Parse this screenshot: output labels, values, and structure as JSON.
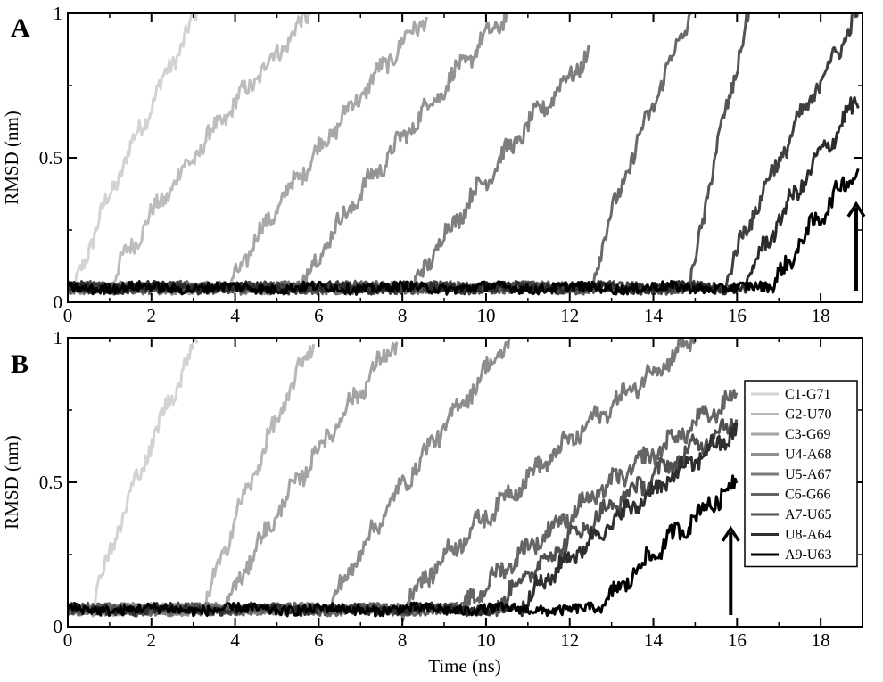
{
  "chart_data": [
    {
      "type": "line",
      "panel_label": "A",
      "ylabel": "RMSD (nm)",
      "xlabel": "",
      "xlim": [
        0,
        19
      ],
      "ylim": [
        0,
        1
      ],
      "x_ticks": [
        0,
        2,
        4,
        6,
        8,
        10,
        12,
        14,
        16,
        18
      ],
      "y_ticks": [
        0,
        0.5,
        1
      ],
      "legend": false,
      "baseline": 0.05,
      "arrow": {
        "x": 18.85,
        "y_from": 0.04,
        "y_to": 0.34
      },
      "series": [
        {
          "color": "#d3d3d3",
          "rise_start": 0.2,
          "rise_end": 3.1,
          "end_x": 3.1,
          "end_y": 1.0
        },
        {
          "color": "#bdbdbd",
          "rise_start": 1.0,
          "rise_end": 5.8,
          "end_x": 5.8,
          "end_y": 1.0
        },
        {
          "color": "#a8a8a8",
          "rise_start": 3.9,
          "rise_end": 8.6,
          "end_x": 8.6,
          "end_y": 1.0
        },
        {
          "color": "#939393",
          "rise_start": 5.6,
          "rise_end": 10.5,
          "end_x": 10.5,
          "end_y": 1.0
        },
        {
          "color": "#7e7e7e",
          "rise_start": 8.3,
          "rise_end": 12.4,
          "end_x": 12.5,
          "end_y": 0.85
        },
        {
          "color": "#6a6a6a",
          "rise_start": 12.5,
          "rise_end": 14.9,
          "end_x": 14.9,
          "end_y": 1.0
        },
        {
          "color": "#555555",
          "rise_start": 14.9,
          "rise_end": 16.3,
          "end_x": 16.3,
          "end_y": 1.0
        },
        {
          "color": "#404040",
          "rise_start": 15.7,
          "rise_end": 18.9,
          "end_x": 18.9,
          "end_y": 1.0
        },
        {
          "color": "#2b2b2b",
          "rise_start": 16.2,
          "rise_end": 18.9,
          "end_x": 18.9,
          "end_y": 0.7
        },
        {
          "color": "#000000",
          "rise_start": 16.9,
          "rise_end": 18.9,
          "end_x": 18.9,
          "end_y": 0.47
        }
      ]
    },
    {
      "type": "line",
      "panel_label": "B",
      "ylabel": "RMSD (nm)",
      "xlabel": "Time (ns)",
      "xlim": [
        0,
        19
      ],
      "ylim": [
        0,
        1
      ],
      "x_ticks": [
        0,
        2,
        4,
        6,
        8,
        10,
        12,
        14,
        16,
        18
      ],
      "y_ticks": [
        0,
        0.5,
        1
      ],
      "legend": true,
      "legend_position": "right",
      "baseline": 0.06,
      "arrow": {
        "x": 15.85,
        "y_from": 0.04,
        "y_to": 0.34
      },
      "series": [
        {
          "name": "C1-G71",
          "color": "#d3d3d3",
          "rise_start": 0.6,
          "rise_end": 3.1,
          "end_x": 3.1,
          "end_y": 1.0
        },
        {
          "name": "G2-U70",
          "color": "#b8b8b8",
          "rise_start": 3.3,
          "rise_end": 5.9,
          "end_x": 5.9,
          "end_y": 1.0
        },
        {
          "name": "C3-G69",
          "color": "#a3a3a3",
          "rise_start": 3.8,
          "rise_end": 7.9,
          "end_x": 7.9,
          "end_y": 1.0
        },
        {
          "name": "U4-A68",
          "color": "#8e8e8e",
          "rise_start": 6.3,
          "rise_end": 10.6,
          "end_x": 10.6,
          "end_y": 1.0
        },
        {
          "name": "U5-A67",
          "color": "#797979",
          "rise_start": 8.0,
          "rise_end": 15.0,
          "end_x": 15.0,
          "end_y": 1.0
        },
        {
          "name": "C6-G66",
          "color": "#656565",
          "rise_start": 9.5,
          "rise_end": 16.0,
          "end_x": 16.0,
          "end_y": 0.8
        },
        {
          "name": "A7-U65",
          "color": "#505050",
          "rise_start": 10.2,
          "rise_end": 16.0,
          "end_x": 16.0,
          "end_y": 0.72
        },
        {
          "name": "U8-A64",
          "color": "#2e2e2e",
          "rise_start": 10.8,
          "rise_end": 16.0,
          "end_x": 16.0,
          "end_y": 0.68
        },
        {
          "name": "A9-U63",
          "color": "#000000",
          "rise_start": 12.8,
          "rise_end": 16.0,
          "end_x": 16.0,
          "end_y": 0.5
        }
      ]
    }
  ]
}
